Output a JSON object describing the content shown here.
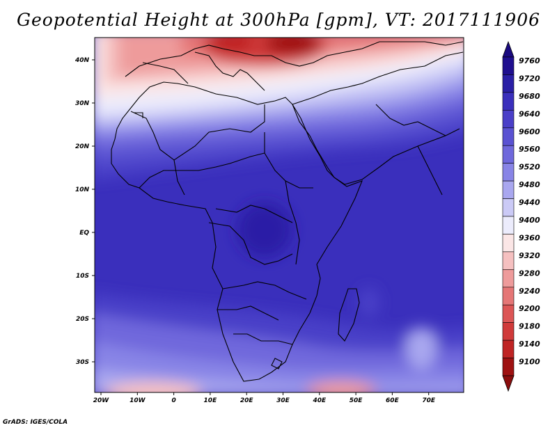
{
  "title": "Geopotential Height at 300hPa [gpm], VT: 2017111906",
  "footer": "GrADS: IGES/COLA",
  "map": {
    "lat_ticks": [
      "40N",
      "30N",
      "20N",
      "10N",
      "EQ",
      "10S",
      "20S",
      "30S"
    ],
    "lon_ticks": [
      "20W",
      "10W",
      "0",
      "10E",
      "20E",
      "30E",
      "40E",
      "50E",
      "60E",
      "70E"
    ]
  },
  "colorbar": {
    "levels": [
      "9760",
      "9720",
      "9680",
      "9640",
      "9600",
      "9560",
      "9520",
      "9480",
      "9440",
      "9400",
      "9360",
      "9320",
      "9280",
      "9240",
      "9200",
      "9180",
      "9140",
      "9100"
    ],
    "colors": [
      "#1f0f8f",
      "#2a1fa6",
      "#3a2fbc",
      "#4a3fc8",
      "#5a52d2",
      "#6f68dc",
      "#8884e6",
      "#a9a7ef",
      "#cbcaf6",
      "#ececfc",
      "#fbe6e6",
      "#f5c0c0",
      "#ee9b9b",
      "#e57676",
      "#dc5555",
      "#d03a3a",
      "#bf2424",
      "#9e1111"
    ],
    "top_arrow_color": "#1a0a80",
    "bottom_arrow_color": "#8b0d0d"
  }
}
